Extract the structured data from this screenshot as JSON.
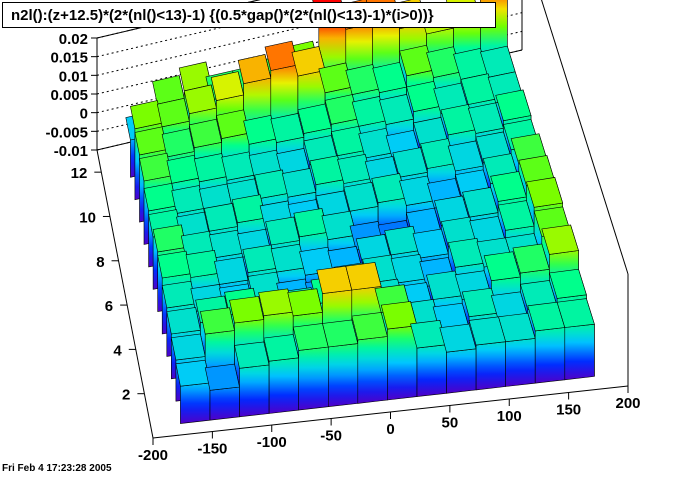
{
  "title": "n2l():(z+12.5)*(2*(nl()<13)-1) {(0.5*gap()*(2*(nl()<13)-1)*(i>0))}",
  "timestamp": "Fri Feb  4 17:23:28 2005",
  "chart_data": {
    "type": "lego",
    "title": "n2l():(z+12.5)*(2*(nl()<13)-1) {(0.5*gap()*(2*(nl()<13)-1)*(i>0))}",
    "xlabel": "",
    "ylabel": "",
    "zlabel": "",
    "xlim": [
      -200,
      200
    ],
    "ylim": [
      0,
      13
    ],
    "zlim": [
      -0.01,
      0.02
    ],
    "x_ticks": [
      -200,
      -150,
      -100,
      -50,
      0,
      50,
      100,
      150,
      200
    ],
    "y_ticks": [
      2,
      4,
      6,
      8,
      10,
      12
    ],
    "z_ticks": [
      -0.01,
      -0.005,
      0,
      0.005,
      0.01,
      0.015,
      0.02
    ],
    "z_tick_labels": [
      "-0.01",
      "-0.005",
      "0",
      "0.005",
      "0.01",
      "0.015",
      "0.02"
    ],
    "x_bin_edges": [
      -175,
      -150,
      -125,
      -100,
      -75,
      -50,
      -25,
      0,
      25,
      50,
      75,
      100,
      125,
      150,
      175
    ],
    "y_bin_edges": [
      0.5,
      1.5,
      2.5,
      3.5,
      4.5,
      5.5,
      6.5,
      7.5,
      8.5,
      9.5,
      10.5,
      11.5,
      12.5
    ],
    "z_values": [
      [
        0.0,
        -0.002,
        0.003,
        0.004,
        0.006,
        0.006,
        0.007,
        0.009,
        0.003,
        0.001,
        0.002,
        0.002,
        0.004,
        0.004
      ],
      [
        0.001,
        0.007,
        0.009,
        0.01,
        0.009,
        0.014,
        0.014,
        0.007,
        0.002,
        0.0,
        0.003,
        0.001,
        0.003,
        0.005
      ],
      [
        0.002,
        0.004,
        0.005,
        0.002,
        0.003,
        0.005,
        0.004,
        0.002,
        0.0,
        0.002,
        0.001,
        0.005,
        0.006,
        0.01
      ],
      [
        0.003,
        0.001,
        0.0,
        0.002,
        -0.001,
        -0.002,
        0.001,
        0.002,
        0.001,
        -0.001,
        0.003,
        0.002,
        0.002,
        0.008
      ],
      [
        0.005,
        0.004,
        0.001,
        0.003,
        0.002,
        0.0,
        -0.001,
        0.001,
        0.002,
        0.0,
        0.002,
        0.001,
        0.004,
        0.009
      ],
      [
        0.006,
        0.003,
        0.002,
        0.001,
        0.003,
        0.004,
        0.002,
        -0.002,
        -0.003,
        -0.001,
        0.001,
        0.002,
        0.005,
        0.008
      ],
      [
        0.004,
        0.002,
        0.003,
        0.004,
        0.001,
        0.0,
        0.001,
        0.002,
        0.003,
        0.001,
        -0.001,
        0.0,
        0.003,
        0.007
      ],
      [
        0.005,
        0.003,
        0.002,
        0.002,
        0.003,
        0.002,
        0.004,
        0.003,
        0.001,
        0.002,
        0.003,
        0.001,
        0.002,
        0.004
      ],
      [
        0.007,
        0.005,
        0.004,
        0.003,
        0.002,
        0.001,
        0.003,
        0.004,
        0.002,
        0.0,
        0.002,
        0.004,
        0.003,
        0.005
      ],
      [
        0.008,
        0.006,
        0.007,
        0.008,
        0.005,
        0.004,
        0.005,
        0.006,
        0.004,
        0.003,
        0.005,
        0.003,
        0.004,
        0.003
      ],
      [
        0.009,
        0.008,
        0.01,
        0.012,
        0.015,
        0.017,
        0.014,
        0.008,
        0.006,
        0.005,
        0.008,
        0.006,
        0.004,
        0.003
      ],
      [
        0.0,
        0.008,
        0.01,
        0.006,
        0.006,
        0.007,
        0.009,
        0.02,
        0.017,
        0.017,
        0.014,
        0.011,
        0.012,
        0.018
      ]
    ]
  }
}
